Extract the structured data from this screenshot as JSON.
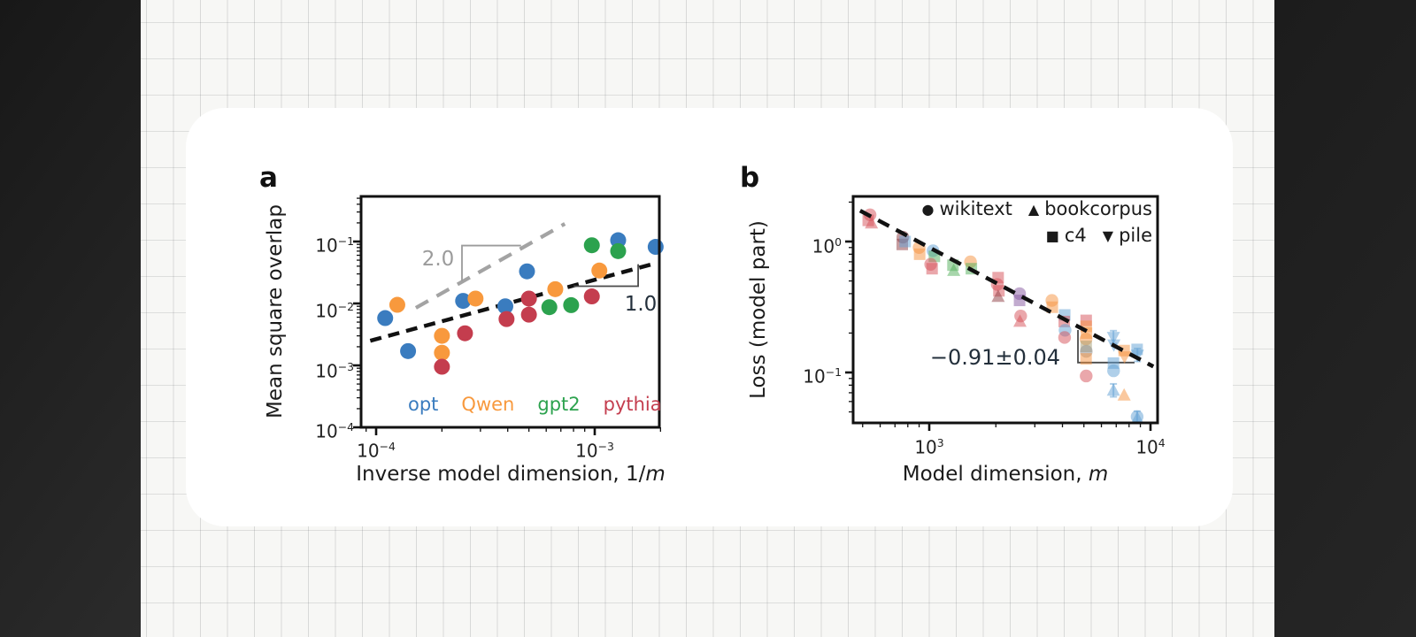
{
  "scene": {
    "side_bar_color": "#1d1d1d",
    "paper_color": "#f7f7f5",
    "card_color": "#ffffff"
  },
  "panel_a": {
    "panel_label": "a",
    "ylabel": "Mean square overlap",
    "xlabel_text": "Inverse model dimension, 1/",
    "xlabel_var": "m",
    "y_tick_labels": [
      "10^−1",
      "10^−2",
      "10^−3",
      "10^−4"
    ],
    "x_tick_labels": [
      "10^−4",
      "10^−3"
    ],
    "slope_upper_label": "2.0",
    "slope_upper_color": "#9b9b9b",
    "slope_lower_label": "1.0",
    "slope_lower_color": "#232f3b",
    "legend": {
      "items": [
        {
          "label": "opt",
          "color": "#3a7cbf"
        },
        {
          "label": "Qwen",
          "color": "#f8993d"
        },
        {
          "label": "gpt2",
          "color": "#2ca24e"
        },
        {
          "label": "pythia",
          "color": "#c43d4e"
        }
      ]
    }
  },
  "panel_b": {
    "panel_label": "b",
    "ylabel": "Loss (model part)",
    "xlabel_text": "Model dimension, ",
    "xlabel_var": "m",
    "y_tick_labels": [
      "10^0",
      "10^−1"
    ],
    "x_tick_labels": [
      "10^3",
      "10^4"
    ],
    "slope_annotation": "−0.91±0.04",
    "legend": {
      "rows": [
        [
          {
            "glyph": "●",
            "label": "wikitext"
          },
          {
            "glyph": "▲",
            "label": "bookcorpus"
          }
        ],
        [
          {
            "glyph": "■",
            "label": "c4"
          },
          {
            "glyph": "▼",
            "label": "pile"
          }
        ]
      ]
    }
  },
  "chart_data": [
    {
      "id": "a",
      "type": "scatter",
      "title": "",
      "xlabel": "Inverse model dimension, 1/m",
      "ylabel": "Mean square overlap",
      "xscale": "log",
      "yscale": "log",
      "xlim": [
        8.5e-05,
        0.00202
      ],
      "ylim": [
        0.0001,
        0.54
      ],
      "x_major_ticks": [
        0.0001,
        0.001
      ],
      "y_major_ticks": [
        0.1,
        0.01,
        0.001,
        0.0001
      ],
      "grid": false,
      "series": [
        {
          "name": "opt",
          "marker": "circle",
          "color": "#3a7cbf",
          "points": [
            [
              0.00011,
              0.0058
            ],
            [
              0.00014,
              0.0017
            ],
            [
              0.00025,
              0.011
            ],
            [
              0.00039,
              0.009
            ],
            [
              0.00049,
              0.033
            ],
            [
              0.00128,
              0.105
            ],
            [
              0.0019,
              0.082
            ]
          ]
        },
        {
          "name": "Qwen",
          "marker": "circle",
          "color": "#f8993d",
          "points": [
            [
              0.000125,
              0.0095
            ],
            [
              0.0002,
              0.003
            ],
            [
              0.0002,
              0.0016
            ],
            [
              0.000285,
              0.012
            ],
            [
              0.00066,
              0.017
            ],
            [
              0.00105,
              0.034
            ]
          ]
        },
        {
          "name": "gpt2",
          "marker": "circle",
          "color": "#2ca24e",
          "points": [
            [
              0.00062,
              0.0087
            ],
            [
              0.00078,
              0.0094
            ],
            [
              0.00097,
              0.087
            ],
            [
              0.00128,
              0.07
            ]
          ]
        },
        {
          "name": "pythia",
          "marker": "circle",
          "color": "#c43d4e",
          "points": [
            [
              0.0002,
              0.00095
            ],
            [
              0.000255,
              0.0033
            ],
            [
              0.000395,
              0.0056
            ],
            [
              0.0005,
              0.012
            ],
            [
              0.0005,
              0.0066
            ],
            [
              0.00097,
              0.013
            ]
          ]
        }
      ],
      "fit_line": {
        "style": "dashed",
        "color": "#111111",
        "slope_label": "1.0",
        "points": [
          [
            9.4e-05,
            0.0025
          ],
          [
            0.00192,
            0.045
          ]
        ]
      },
      "guide_line": {
        "style": "dashed",
        "color": "#a3a3a3",
        "slope_label": "2.0",
        "points": [
          [
            0.000152,
            0.0085
          ],
          [
            0.00073,
            0.193
          ]
        ]
      },
      "slope_wedges": [
        {
          "color": "#9b9b9b",
          "polyline": [
            [
              0.000247,
              0.023
            ],
            [
              0.000247,
              0.086
            ],
            [
              0.00046,
              0.086
            ]
          ]
        },
        {
          "color": "#4a4a4a",
          "polyline": [
            [
              0.0008,
              0.019
            ],
            [
              0.00158,
              0.019
            ],
            [
              0.00158,
              0.043
            ]
          ]
        }
      ]
    },
    {
      "id": "b",
      "type": "scatter",
      "title": "",
      "xlabel": "Model dimension, m",
      "ylabel": "Loss (model part)",
      "xscale": "log",
      "yscale": "log",
      "xlim": [
        455,
        10780
      ],
      "ylim": [
        0.0415,
        2.26
      ],
      "x_major_ticks": [
        1000.0,
        10000.0
      ],
      "y_major_ticks": [
        1,
        0.1
      ],
      "grid": false,
      "marker_legend": [
        {
          "marker": "circle",
          "label": "wikitext"
        },
        {
          "marker": "triangle",
          "label": "bookcorpus"
        },
        {
          "marker": "square",
          "label": "c4"
        },
        {
          "marker": "triangle-down",
          "label": "pile"
        }
      ],
      "fit_line": {
        "style": "dashed",
        "color": "#111111",
        "slope_label": "−0.91±0.04",
        "points": [
          [
            487,
            1.72
          ],
          [
            10300,
            0.111
          ]
        ]
      },
      "slope_wedges": [
        {
          "color": "#4a4a4a",
          "polyline": [
            [
              4700,
              0.211
            ],
            [
              4700,
              0.119
            ],
            [
              8470,
              0.119
            ]
          ]
        }
      ],
      "points": [
        {
          "x": 540,
          "y": 1.6,
          "m": "circle",
          "c": "#d64f57"
        },
        {
          "x": 530,
          "y": 1.45,
          "m": "square",
          "c": "#d64f57"
        },
        {
          "x": 548,
          "y": 1.38,
          "m": "triangle",
          "c": "#d64f57"
        },
        {
          "x": 760,
          "y": 1.08,
          "m": "circle",
          "c": "#8e3b42"
        },
        {
          "x": 755,
          "y": 0.95,
          "m": "square",
          "c": "#8e3b42"
        },
        {
          "x": 778,
          "y": 1.0,
          "m": "square",
          "c": "#5f9fd3"
        },
        {
          "x": 900,
          "y": 0.9,
          "m": "circle",
          "c": "#f5923e"
        },
        {
          "x": 905,
          "y": 0.8,
          "m": "square",
          "c": "#f5923e"
        },
        {
          "x": 1040,
          "y": 0.85,
          "m": "circle",
          "c": "#5f9fd3"
        },
        {
          "x": 1055,
          "y": 0.77,
          "m": "square",
          "c": "#4fae57"
        },
        {
          "x": 1015,
          "y": 0.67,
          "m": "circle",
          "c": "#d64f57"
        },
        {
          "x": 1030,
          "y": 0.62,
          "m": "square",
          "c": "#d64f57"
        },
        {
          "x": 1280,
          "y": 0.66,
          "m": "square",
          "c": "#4fae57"
        },
        {
          "x": 1290,
          "y": 0.6,
          "m": "triangle",
          "c": "#4fae57"
        },
        {
          "x": 1536,
          "y": 0.7,
          "m": "circle",
          "c": "#f5923e"
        },
        {
          "x": 1550,
          "y": 0.62,
          "m": "square",
          "c": "#4fae57"
        },
        {
          "x": 2048,
          "y": 0.53,
          "m": "square",
          "c": "#d64f57"
        },
        {
          "x": 2030,
          "y": 0.47,
          "m": "circle",
          "c": "#d64f57"
        },
        {
          "x": 2065,
          "y": 0.42,
          "m": "square",
          "c": "#d64f57"
        },
        {
          "x": 2048,
          "y": 0.38,
          "m": "triangle",
          "c": "#8e3b42"
        },
        {
          "x": 2560,
          "y": 0.4,
          "m": "circle",
          "c": "#86589f"
        },
        {
          "x": 2560,
          "y": 0.355,
          "m": "square",
          "c": "#86589f"
        },
        {
          "x": 2590,
          "y": 0.27,
          "m": "circle",
          "c": "#d64f57"
        },
        {
          "x": 2570,
          "y": 0.245,
          "m": "triangle",
          "c": "#d64f57"
        },
        {
          "x": 3584,
          "y": 0.355,
          "m": "circle",
          "c": "#f5923e"
        },
        {
          "x": 3600,
          "y": 0.315,
          "m": "square",
          "c": "#f5923e"
        },
        {
          "x": 4096,
          "y": 0.275,
          "m": "square",
          "c": "#5f9fd3"
        },
        {
          "x": 4075,
          "y": 0.245,
          "m": "square",
          "c": "#d64f57"
        },
        {
          "x": 4110,
          "y": 0.21,
          "m": "circle",
          "c": "#5f9fd3"
        },
        {
          "x": 4090,
          "y": 0.185,
          "m": "circle",
          "c": "#d64f57"
        },
        {
          "x": 5120,
          "y": 0.25,
          "m": "square",
          "c": "#d64f57"
        },
        {
          "x": 5120,
          "y": 0.225,
          "m": "square",
          "c": "#f5923e"
        },
        {
          "x": 5135,
          "y": 0.2,
          "m": "square",
          "c": "#f5923e"
        },
        {
          "x": 5110,
          "y": 0.18,
          "m": "circle",
          "c": "#f5923e"
        },
        {
          "x": 5120,
          "y": 0.158,
          "m": "square",
          "c": "#a39b72"
        },
        {
          "x": 5125,
          "y": 0.145,
          "m": "circle",
          "c": "#8f8f8f"
        },
        {
          "x": 5115,
          "y": 0.127,
          "m": "square",
          "c": "#f5923e"
        },
        {
          "x": 5120,
          "y": 0.094,
          "m": "circle",
          "c": "#d64f57"
        },
        {
          "x": 6800,
          "y": 0.186,
          "m": "triangle-down",
          "c": "#5f9fd3",
          "err": 0.12
        },
        {
          "x": 6830,
          "y": 0.163,
          "m": "triangle-down",
          "c": "#5f9fd3"
        },
        {
          "x": 6800,
          "y": 0.118,
          "m": "square",
          "c": "#5f9fd3"
        },
        {
          "x": 6810,
          "y": 0.103,
          "m": "circle",
          "c": "#5f9fd3"
        },
        {
          "x": 6800,
          "y": 0.073,
          "m": "triangle",
          "c": "#5f9fd3",
          "err": 0.12
        },
        {
          "x": 7600,
          "y": 0.147,
          "m": "square",
          "c": "#f5923e"
        },
        {
          "x": 7630,
          "y": 0.132,
          "m": "triangle-down",
          "c": "#f5923e"
        },
        {
          "x": 7600,
          "y": 0.067,
          "m": "triangle",
          "c": "#f5923e"
        },
        {
          "x": 8700,
          "y": 0.15,
          "m": "square",
          "c": "#5f9fd3"
        },
        {
          "x": 8730,
          "y": 0.136,
          "m": "triangle-down",
          "c": "#5f9fd3",
          "err": 0.12
        },
        {
          "x": 8700,
          "y": 0.046,
          "m": "circle",
          "c": "#5f9fd3",
          "err": 0.1
        },
        {
          "x": 8720,
          "y": 0.0445,
          "m": "triangle",
          "c": "#5f9fd3"
        }
      ]
    }
  ]
}
